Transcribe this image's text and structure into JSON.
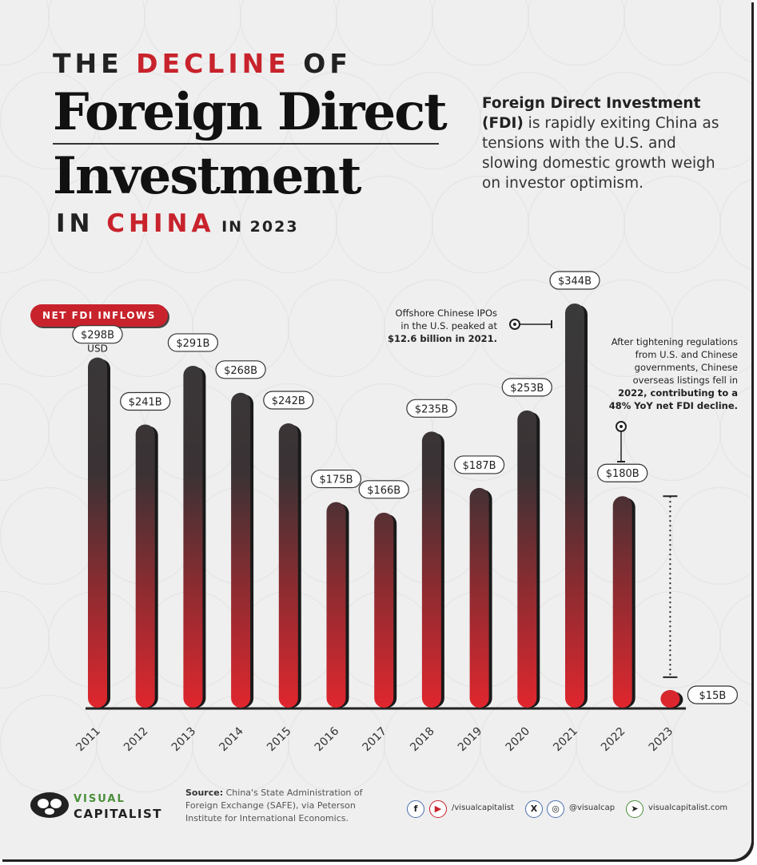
{
  "title": {
    "line1_pre": "THE ",
    "line1_red": "DECLINE",
    "line1_post": " OF",
    "big1": "Foreign Direct",
    "big2": "Investment",
    "line4_pre": "IN ",
    "line4_red": "CHINA",
    "line4_post": " IN 2023"
  },
  "intro": {
    "bold": "Foreign Direct Investment (FDI)",
    "text": " is rapidly exiting China as tensions with the U.S. and slowing domestic growth weigh on investor optimism."
  },
  "chart_data": {
    "type": "bar",
    "title": "",
    "xlabel": "",
    "ylabel": "",
    "legend": "NET FDI INFLOWS",
    "unit_label": "USD",
    "ylim": [
      0,
      344
    ],
    "categories": [
      "2011",
      "2012",
      "2013",
      "2014",
      "2015",
      "2016",
      "2017",
      "2018",
      "2019",
      "2020",
      "2021",
      "2022",
      "2023"
    ],
    "values": [
      298,
      241,
      291,
      268,
      242,
      175,
      166,
      235,
      187,
      253,
      344,
      180,
      15
    ],
    "labels": [
      "$298B",
      "$241B",
      "$291B",
      "$268B",
      "$242B",
      "$175B",
      "$166B",
      "$235B",
      "$187B",
      "$253B",
      "$344B",
      "$180B",
      "$15B"
    ],
    "annotations": [
      {
        "year": "2021",
        "text_lines": [
          "Offshore Chinese IPOs",
          "in the U.S. peaked at",
          "$12.6 billion in 2021."
        ]
      },
      {
        "year": "2022",
        "text_lines": [
          "After tightening regulations",
          "from U.S. and Chinese",
          "governments, Chinese",
          "overseas listings fell in",
          "2022, contributing to a",
          "48% YoY net FDI decline."
        ]
      }
    ]
  },
  "colors": {
    "accent_red": "#c8232c",
    "bar_dark": "#3a3a3a",
    "bar_red": "#e0262e"
  },
  "footer": {
    "logo_line1": "VISUAL",
    "logo_line2": "CAPITALIST",
    "source_label": "Source:",
    "source_text": " China's State Administration of Foreign Exchange (SAFE), via Peterson Institute for International Economics.",
    "social1_handle": "/visualcapitalist",
    "social2_handle": "@visualcap",
    "social3_handle": "visualcapitalist.com",
    "icons": [
      "facebook-icon",
      "youtube-icon",
      "x-icon",
      "instagram-icon",
      "cursor-icon"
    ]
  }
}
